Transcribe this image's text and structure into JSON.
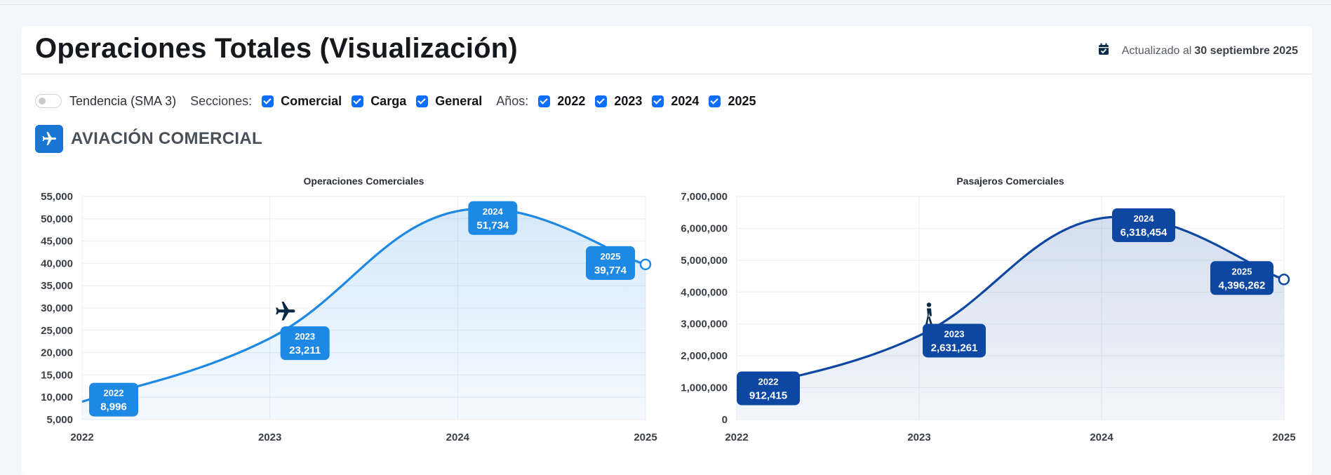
{
  "header": {
    "title": "Operaciones Totales (Visualización)",
    "updated_prefix": "Actualizado al",
    "updated_date": "30 septiembre 2025",
    "calendar_icon": "calendar-check-icon"
  },
  "filters": {
    "trend_label": "Tendencia (SMA 3)",
    "sections_label": "Secciones:",
    "sections": [
      "Comercial",
      "Carga",
      "General"
    ],
    "years_label": "Años:",
    "years": [
      "2022",
      "2023",
      "2024",
      "2025"
    ],
    "accent": "#0d6efd"
  },
  "section": {
    "title": "AVIACIÓN COMERCIAL",
    "icon": "airplane-icon"
  },
  "chart_data": [
    {
      "type": "area",
      "title": "Operaciones Comerciales",
      "x": [
        "2022",
        "2023",
        "2024",
        "2025"
      ],
      "values": [
        8996,
        23211,
        51734,
        39774
      ],
      "value_labels": [
        "8,996",
        "23,211",
        "51,734",
        "39,774"
      ],
      "ylim": [
        5000,
        55000
      ],
      "y_ticks": [
        "5,000",
        "10,000",
        "15,000",
        "20,000",
        "25,000",
        "30,000",
        "35,000",
        "40,000",
        "45,000",
        "50,000",
        "55,000"
      ],
      "color": "#1e88e5",
      "marker_icon": "airplane-icon",
      "grid": true
    },
    {
      "type": "area",
      "title": "Pasajeros Comerciales",
      "x": [
        "2022",
        "2023",
        "2024",
        "2025"
      ],
      "values": [
        912415,
        2631261,
        6318454,
        4396262
      ],
      "value_labels": [
        "912,415",
        "2,631,261",
        "6,318,454",
        "4,396,262"
      ],
      "ylim": [
        0,
        7000000
      ],
      "y_ticks": [
        "0",
        "1,000,000",
        "2,000,000",
        "3,000,000",
        "4,000,000",
        "5,000,000",
        "6,000,000",
        "7,000,000"
      ],
      "color": "#0d47a1",
      "marker_icon": "walking-person-icon",
      "grid": true
    }
  ]
}
